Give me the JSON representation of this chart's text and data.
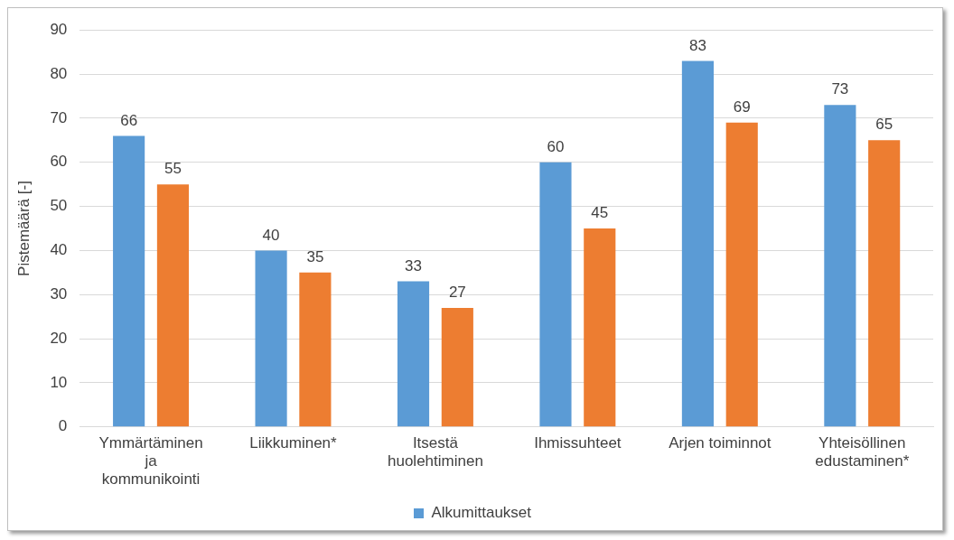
{
  "chart_data": {
    "type": "bar",
    "ylabel": "Pistemäärä [-]",
    "categories": [
      "Ymmärtäminen\nja\nkommunikointi",
      "Liikkuminen*",
      "Itsestä\nhuolehtiminen",
      "Ihmissuhteet",
      "Arjen toiminnot",
      "Yhteisöllinen\nedustaminen*"
    ],
    "series": [
      {
        "name": "Alkumittaukset",
        "color": "#5b9bd5",
        "values": [
          66,
          40,
          33,
          60,
          83,
          73
        ]
      },
      {
        "color": "#ed7d31",
        "values": [
          55,
          35,
          27,
          45,
          69,
          65
        ]
      }
    ],
    "ylim": [
      0,
      90
    ],
    "yticks": [
      0,
      10,
      20,
      30,
      40,
      50,
      60,
      70,
      80,
      90
    ],
    "grid": "y",
    "legend": "bottom",
    "data_labels": true
  }
}
